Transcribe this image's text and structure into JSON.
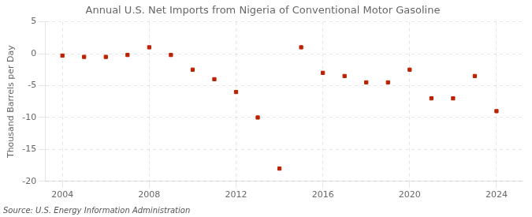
{
  "chart_data": {
    "type": "scatter",
    "title": "Annual U.S. Net Imports from Nigeria of Conventional Motor Gasoline",
    "ylabel": "Thousand Barrels per Day",
    "source": "Source: U.S. Energy Information Administration",
    "x": [
      2004,
      2005,
      2006,
      2007,
      2008,
      2009,
      2010,
      2011,
      2012,
      2013,
      2014,
      2015,
      2016,
      2017,
      2018,
      2019,
      2020,
      2021,
      2022,
      2023,
      2024
    ],
    "values": [
      -0.3,
      -0.5,
      -0.5,
      -0.2,
      1.0,
      -0.2,
      -2.5,
      -4.0,
      -6.0,
      -10.0,
      -18.0,
      1.0,
      -3.0,
      -3.5,
      -4.5,
      -4.5,
      -2.5,
      -7.0,
      -7.0,
      -3.5,
      -9.0
    ],
    "color": "#bb2200",
    "marker": "square",
    "xlim": [
      2003.2,
      2025.2
    ],
    "xticks": [
      2004,
      2008,
      2012,
      2016,
      2020,
      2024
    ],
    "ylim": [
      -20,
      5
    ],
    "yticks": [
      -20,
      -15,
      -10,
      -5,
      0,
      5
    ],
    "grid": true
  }
}
